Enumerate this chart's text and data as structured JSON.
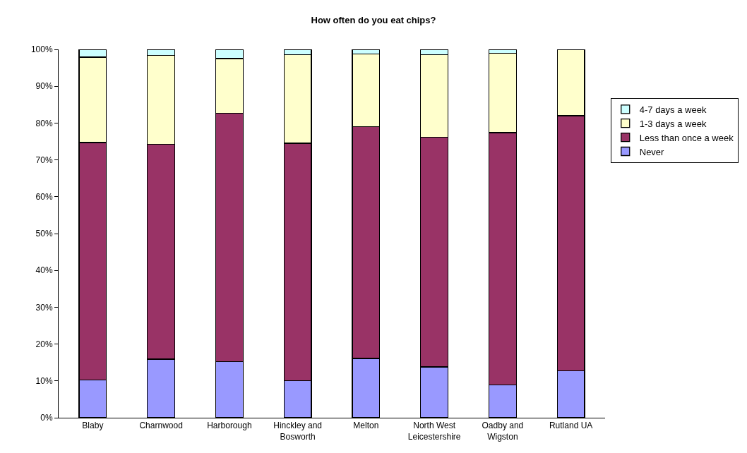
{
  "chart_data": {
    "type": "bar",
    "title": "How often do you eat chips?",
    "stacked": true,
    "categories": [
      "Blaby",
      "Charnwood",
      "Harborough",
      "Hinckley and Bosworth",
      "Melton",
      "North West Leicestershire",
      "Oadby and Wigston",
      "Rutland UA"
    ],
    "series": [
      {
        "name": "Never",
        "color": "#9999ff",
        "values": [
          10.3,
          15.9,
          15.2,
          10.1,
          16.1,
          13.8,
          8.9,
          12.8
        ]
      },
      {
        "name": "Less than once a week",
        "color": "#993366",
        "values": [
          64.4,
          58.4,
          67.5,
          64.4,
          62.9,
          62.4,
          68.5,
          69.2
        ]
      },
      {
        "name": "1-3 days a week",
        "color": "#ffffcc",
        "values": [
          23.2,
          24.1,
          14.8,
          24.0,
          19.7,
          22.3,
          21.5,
          18.0
        ]
      },
      {
        "name": "4-7 days a week",
        "color": "#ccffff",
        "values": [
          2.1,
          1.6,
          2.5,
          1.5,
          1.3,
          1.5,
          1.1,
          null
        ]
      }
    ],
    "ylim": [
      0,
      100
    ],
    "yticks": [
      {
        "value": 0,
        "label": "0%"
      },
      {
        "value": 10,
        "label": "10%"
      },
      {
        "value": 20,
        "label": "20%"
      },
      {
        "value": 30,
        "label": "30%"
      },
      {
        "value": 40,
        "label": "40%"
      },
      {
        "value": 50,
        "label": "50%"
      },
      {
        "value": 60,
        "label": "60%"
      },
      {
        "value": 70,
        "label": "70%"
      },
      {
        "value": 80,
        "label": "80%"
      },
      {
        "value": 90,
        "label": "90%"
      },
      {
        "value": 100,
        "label": "100%"
      }
    ],
    "grid": false,
    "legend": "right"
  }
}
